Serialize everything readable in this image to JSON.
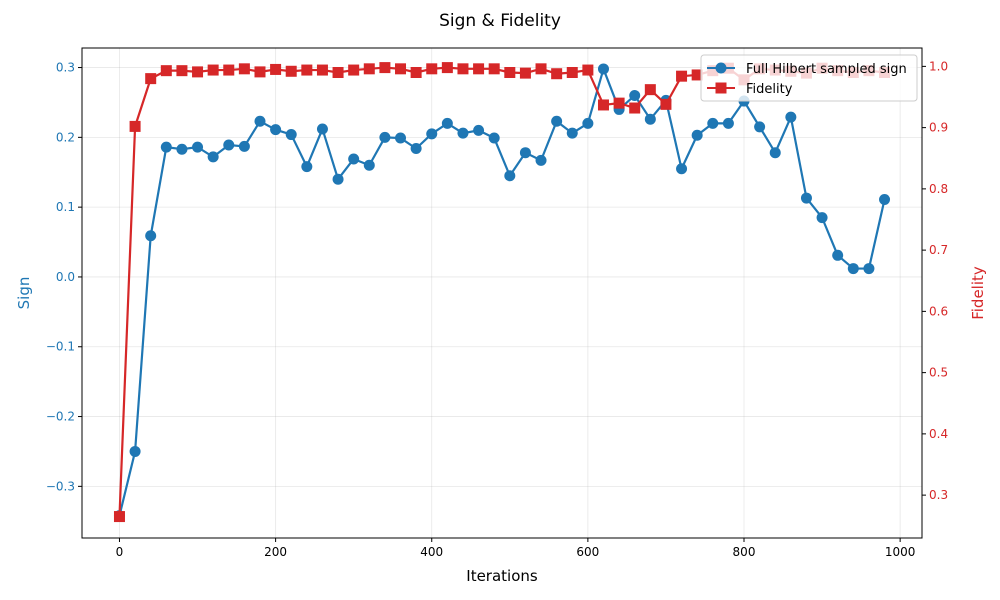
{
  "chart_data": {
    "type": "line",
    "title": "Sign & Fidelity",
    "xlabel": "Iterations",
    "ylabel_left": "Sign",
    "ylabel_right": "Fidelity",
    "xlim": [
      -48,
      1028
    ],
    "ylim_left": [
      -0.374,
      0.328
    ],
    "ylim_right": [
      0.23,
      1.03
    ],
    "x_ticks": [
      0,
      200,
      400,
      600,
      800,
      1000
    ],
    "x_tick_labels": [
      "0",
      "200",
      "400",
      "600",
      "800",
      "1000"
    ],
    "y_left_ticks": [
      -0.3,
      -0.2,
      -0.1,
      0.0,
      0.1,
      0.2,
      0.3
    ],
    "y_left_tick_labels": [
      "−0.3",
      "−0.2",
      "−0.1",
      "0.0",
      "0.1",
      "0.2",
      "0.3"
    ],
    "y_right_ticks": [
      0.3,
      0.4,
      0.5,
      0.6,
      0.7,
      0.8,
      0.9,
      1.0
    ],
    "y_right_tick_labels": [
      "0.3",
      "0.4",
      "0.5",
      "0.6",
      "0.7",
      "0.8",
      "0.9",
      "1.0"
    ],
    "grid": true,
    "legend_position": "top-right",
    "x": [
      0,
      20,
      40,
      60,
      80,
      100,
      120,
      140,
      160,
      180,
      200,
      220,
      240,
      260,
      280,
      300,
      320,
      340,
      360,
      380,
      400,
      420,
      440,
      460,
      480,
      500,
      520,
      540,
      560,
      580,
      600,
      620,
      640,
      660,
      680,
      700,
      720,
      740,
      760,
      780,
      800,
      820,
      840,
      860,
      880,
      900,
      920,
      940,
      960,
      980
    ],
    "series": [
      {
        "name": "Full Hilbert sampled sign",
        "axis": "left",
        "color": "#1f77b4",
        "marker": "circle",
        "values": [
          -0.342,
          -0.25,
          0.059,
          0.186,
          0.183,
          0.186,
          0.172,
          0.189,
          0.187,
          0.223,
          0.211,
          0.204,
          0.158,
          0.212,
          0.14,
          0.169,
          0.16,
          0.2,
          0.199,
          0.184,
          0.205,
          0.22,
          0.206,
          0.21,
          0.199,
          0.145,
          0.178,
          0.167,
          0.223,
          0.206,
          0.22,
          0.298,
          0.24,
          0.26,
          0.226,
          0.253,
          0.155,
          0.203,
          0.22,
          0.22,
          0.252,
          0.215,
          0.178,
          0.229,
          0.113,
          0.085,
          0.031,
          0.012,
          0.012,
          0.111
        ]
      },
      {
        "name": "Fidelity",
        "axis": "right",
        "color": "#d62728",
        "marker": "square",
        "values": [
          0.265,
          0.902,
          0.98,
          0.993,
          0.993,
          0.991,
          0.994,
          0.994,
          0.996,
          0.991,
          0.995,
          0.992,
          0.994,
          0.994,
          0.99,
          0.994,
          0.996,
          0.998,
          0.996,
          0.99,
          0.996,
          0.998,
          0.996,
          0.996,
          0.996,
          0.99,
          0.989,
          0.996,
          0.988,
          0.99,
          0.994,
          0.937,
          0.94,
          0.932,
          0.962,
          0.938,
          0.984,
          0.986,
          0.993,
          0.997,
          0.978,
          0.996,
          0.994,
          0.992,
          0.989,
          0.997,
          0.993,
          0.99,
          0.993,
          0.99
        ]
      }
    ]
  }
}
